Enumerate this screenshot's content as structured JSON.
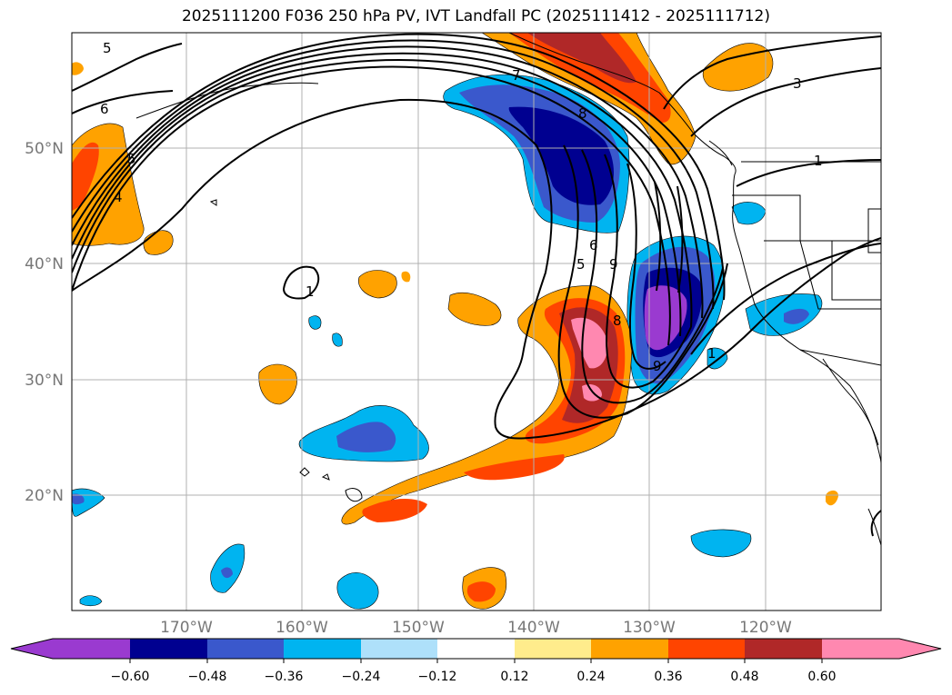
{
  "title": "2025111200 F036 250 hPa PV, IVT Landfall PC (2025111412 - 2025111712)",
  "colors": {
    "c0": "#9a3ad0",
    "c1": "#000090",
    "c2": "#3a58cc",
    "c3": "#00b4f0",
    "c4": "#aee0fa",
    "c5": "#ffffff",
    "c6": "#ffec8c",
    "c7": "#ffa200",
    "c8": "#ff4400",
    "c9": "#b02828",
    "c10": "#ff88b0"
  },
  "map": {
    "latitude_labels": [
      "50°N",
      "40°N",
      "30°N",
      "20°N"
    ],
    "longitude_labels": [
      "170°W",
      "160°W",
      "150°W",
      "140°W",
      "130°W",
      "120°W"
    ],
    "pv_contour_labels": [
      "5",
      "6",
      "5",
      "4",
      "7",
      "8",
      "3",
      "1",
      "1",
      "1",
      "5",
      "6",
      "9",
      "8",
      "9"
    ]
  },
  "colorbar": {
    "ticks": [
      "−0.60",
      "−0.48",
      "−0.36",
      "−0.24",
      "−0.12",
      "0.12",
      "0.24",
      "0.36",
      "0.48",
      "0.60"
    ]
  }
}
